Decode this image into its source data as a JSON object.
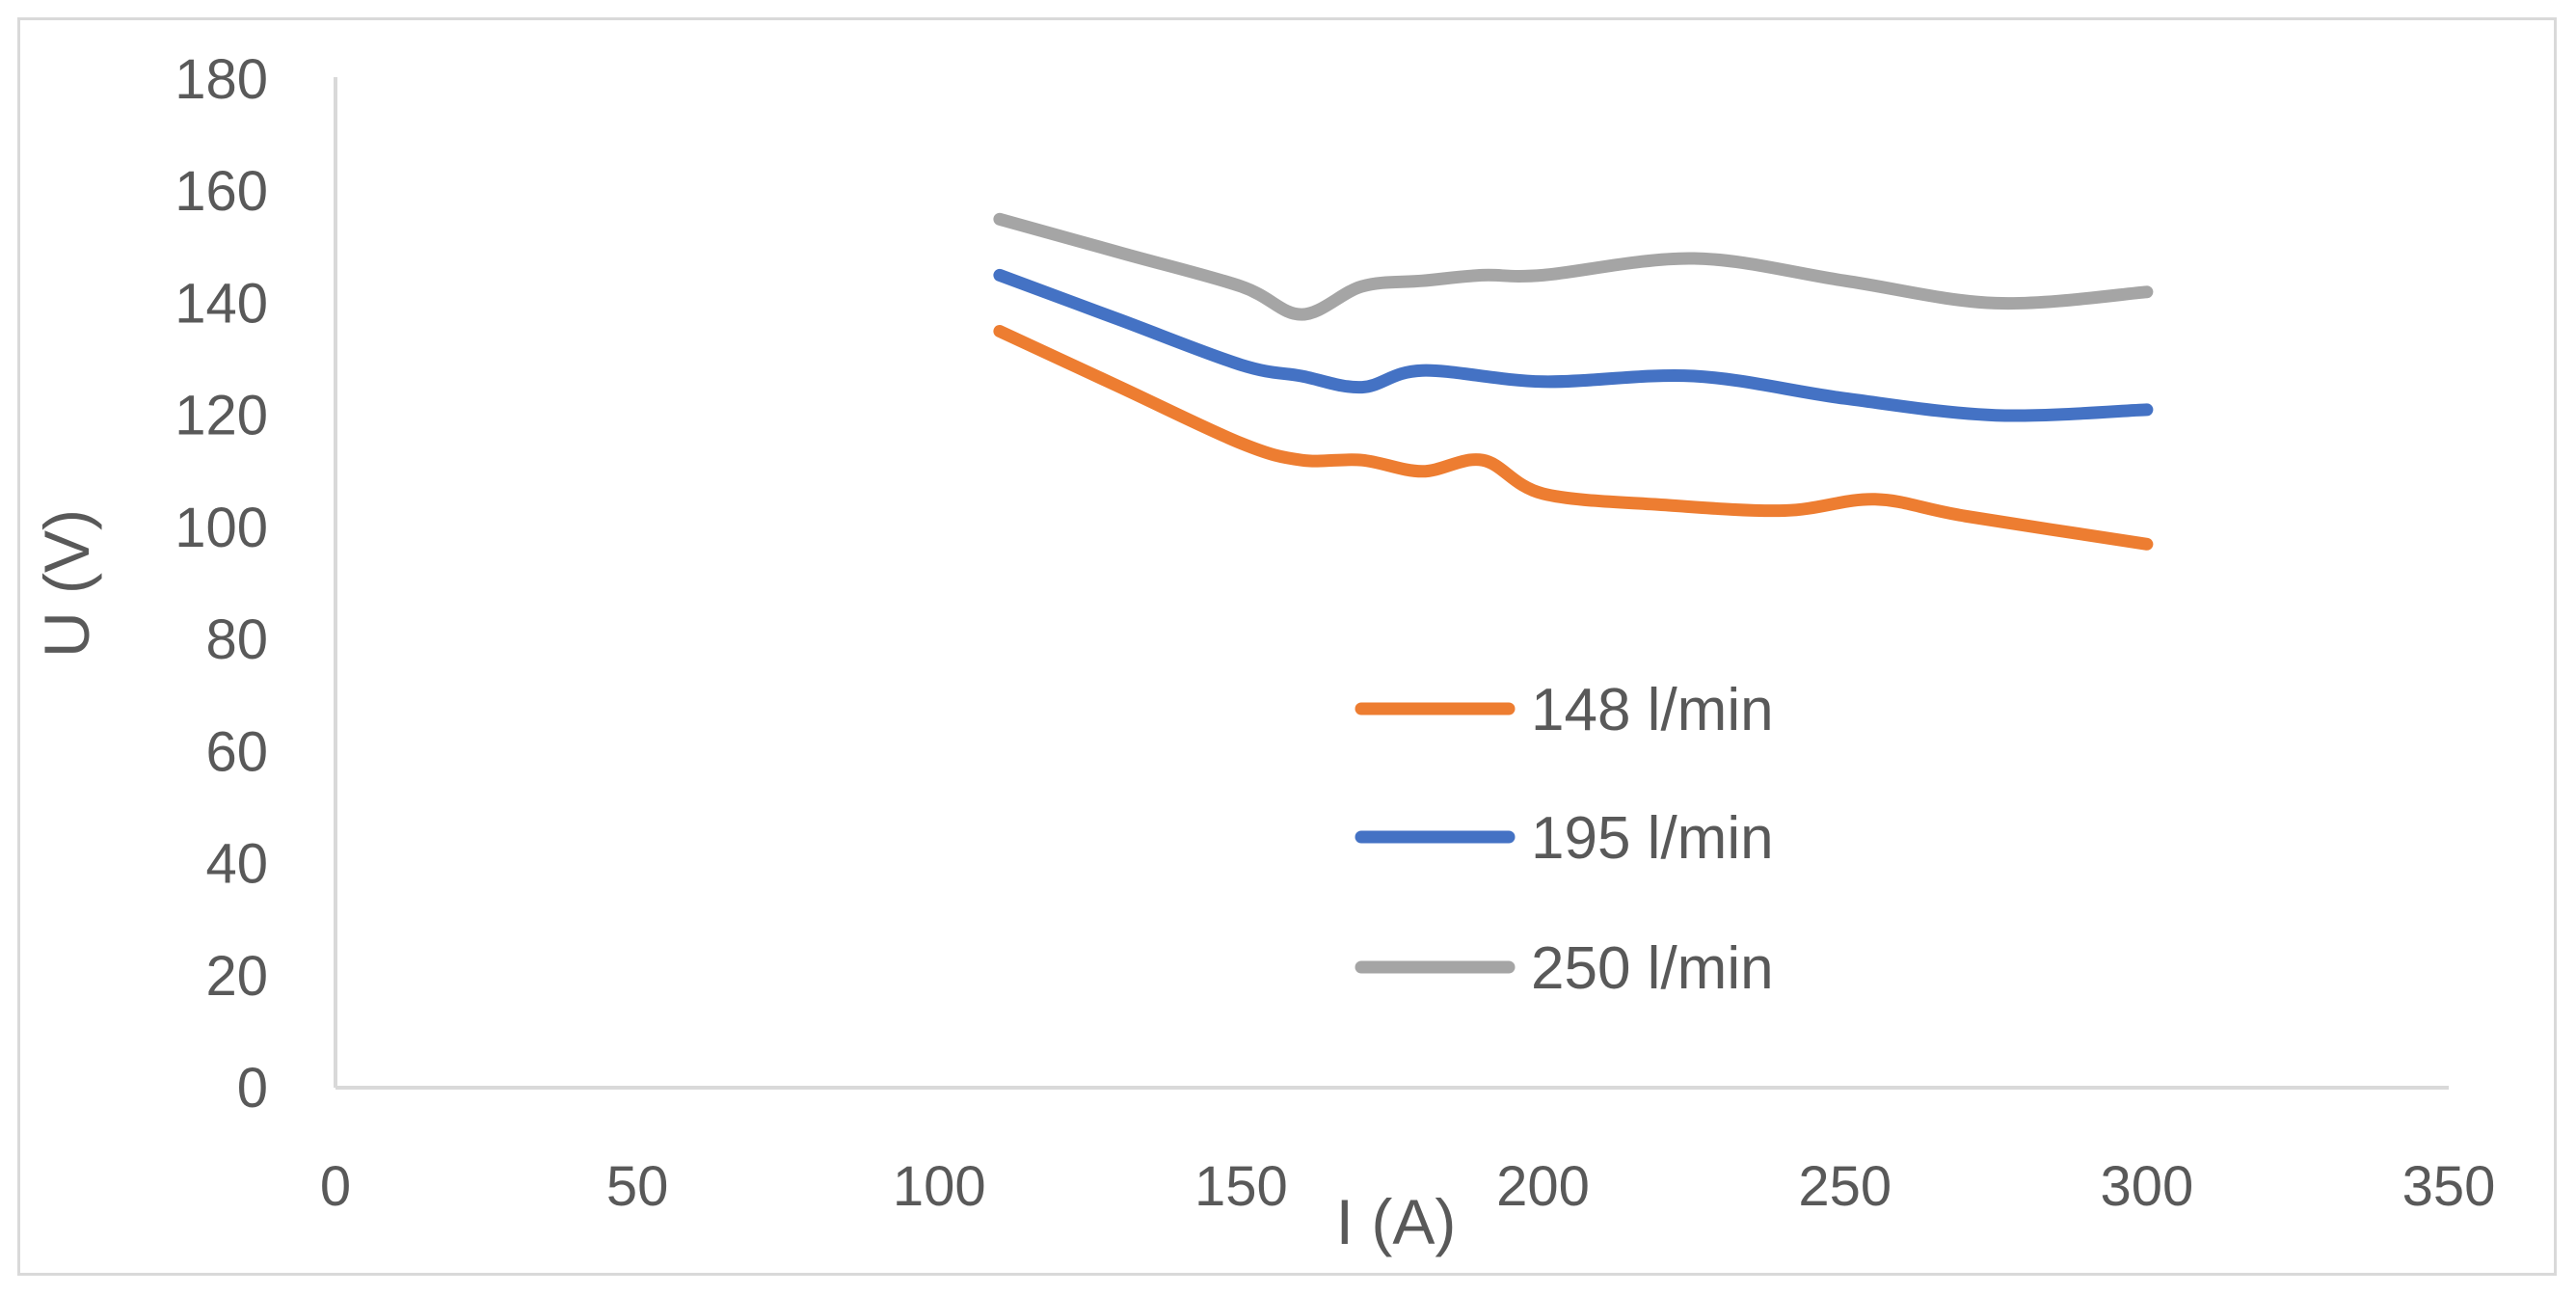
{
  "chart_data": {
    "type": "line",
    "title": "",
    "xlabel": "I (A)",
    "ylabel": "U (V)",
    "xlim": [
      0,
      350
    ],
    "ylim": [
      0,
      180
    ],
    "x_ticks": [
      0,
      50,
      100,
      150,
      200,
      250,
      300,
      350
    ],
    "y_ticks": [
      0,
      20,
      40,
      60,
      80,
      100,
      120,
      140,
      160,
      180
    ],
    "grid": false,
    "legend_position": "center-right",
    "series": [
      {
        "name": "148 l/min",
        "color": "#ed7d31",
        "points": [
          [
            110,
            135
          ],
          [
            130,
            125
          ],
          [
            150,
            115
          ],
          [
            160,
            112
          ],
          [
            170,
            112
          ],
          [
            180,
            110
          ],
          [
            190,
            112
          ],
          [
            200,
            106
          ],
          [
            220,
            104
          ],
          [
            240,
            103
          ],
          [
            255,
            105
          ],
          [
            270,
            102
          ],
          [
            300,
            97
          ]
        ]
      },
      {
        "name": "195 l/min",
        "color": "#4472c4",
        "points": [
          [
            110,
            145
          ],
          [
            130,
            137
          ],
          [
            150,
            129
          ],
          [
            160,
            127
          ],
          [
            170,
            125
          ],
          [
            180,
            128
          ],
          [
            200,
            126
          ],
          [
            225,
            127
          ],
          [
            250,
            123
          ],
          [
            275,
            120
          ],
          [
            300,
            121
          ]
        ]
      },
      {
        "name": "250 l/min",
        "color": "#a5a5a5",
        "points": [
          [
            110,
            155
          ],
          [
            130,
            149
          ],
          [
            150,
            143
          ],
          [
            160,
            138
          ],
          [
            170,
            143
          ],
          [
            180,
            144
          ],
          [
            190,
            145
          ],
          [
            200,
            145
          ],
          [
            225,
            148
          ],
          [
            250,
            144
          ],
          [
            275,
            140
          ],
          [
            300,
            142
          ]
        ]
      }
    ]
  }
}
